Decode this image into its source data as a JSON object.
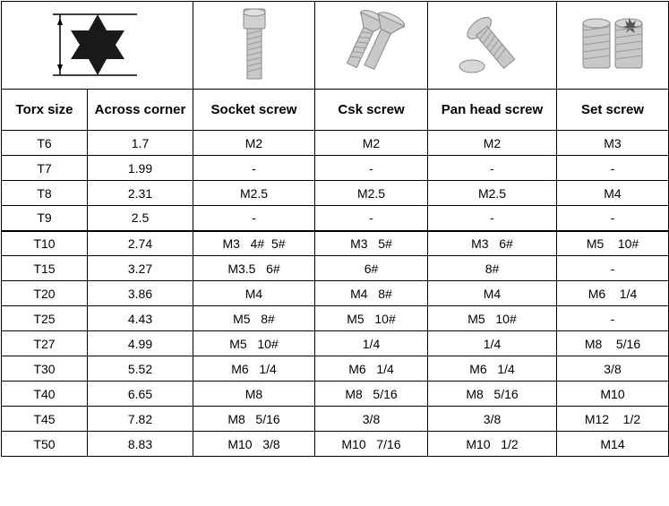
{
  "headers": {
    "col1": "Torx size",
    "col2": "Across corner",
    "col3": "Socket screw",
    "col4": "Csk screw",
    "col5": "Pan head screw",
    "col6": "Set screw"
  },
  "colors": {
    "border": "#000000",
    "background": "#ffffff",
    "text": "#000000",
    "icon_fill": "#1a1a1a",
    "screw_fill": "#c8c8c8",
    "screw_stroke": "#888888"
  },
  "rows": [
    {
      "torx": "T6",
      "across": "1.7",
      "socket": "M2",
      "csk": "M2",
      "pan": "M2",
      "set": "M3"
    },
    {
      "torx": "T7",
      "across": "1.99",
      "socket": "-",
      "csk": "-",
      "pan": "-",
      "set": "-"
    },
    {
      "torx": "T8",
      "across": "2.31",
      "socket": "M2.5",
      "csk": "M2.5",
      "pan": "M2.5",
      "set": "M4"
    },
    {
      "torx": "T9",
      "across": "2.5",
      "socket": "-",
      "csk": "-",
      "pan": "-",
      "set": "-"
    },
    {
      "torx": "T10",
      "across": "2.74",
      "socket": "M3   4#  5#",
      "csk": "M3   5#",
      "pan": "M3   6#",
      "set": "M5    10#"
    },
    {
      "torx": "T15",
      "across": "3.27",
      "socket": "M3.5   6#",
      "csk": "6#",
      "pan": "8#",
      "set": "-"
    },
    {
      "torx": "T20",
      "across": "3.86",
      "socket": "M4",
      "csk": "M4   8#",
      "pan": "M4",
      "set": "M6    1/4"
    },
    {
      "torx": "T25",
      "across": "4.43",
      "socket": "M5   8#",
      "csk": "M5   10#",
      "pan": "M5   10#",
      "set": "-"
    },
    {
      "torx": "T27",
      "across": "4.99",
      "socket": "M5   10#",
      "csk": "1/4",
      "pan": "1/4",
      "set": "M8    5/16"
    },
    {
      "torx": "T30",
      "across": "5.52",
      "socket": "M6   1/4",
      "csk": "M6   1/4",
      "pan": "M6   1/4",
      "set": "3/8"
    },
    {
      "torx": "T40",
      "across": "6.65",
      "socket": "M8",
      "csk": "M8   5/16",
      "pan": "M8   5/16",
      "set": "M10"
    },
    {
      "torx": "T45",
      "across": "7.82",
      "socket": "M8   5/16",
      "csk": "3/8",
      "pan": "3/8",
      "set": "M12    1/2"
    },
    {
      "torx": "T50",
      "across": "8.83",
      "socket": "M10   3/8",
      "csk": "M10   7/16",
      "pan": "M10   1/2",
      "set": "M14"
    }
  ],
  "thick_border_row": 4,
  "icons": {
    "torx_star": "torx-star-icon",
    "socket": "socket-screw-icon",
    "csk": "csk-screw-icon",
    "pan": "pan-head-screw-icon",
    "set": "set-screw-icon"
  }
}
